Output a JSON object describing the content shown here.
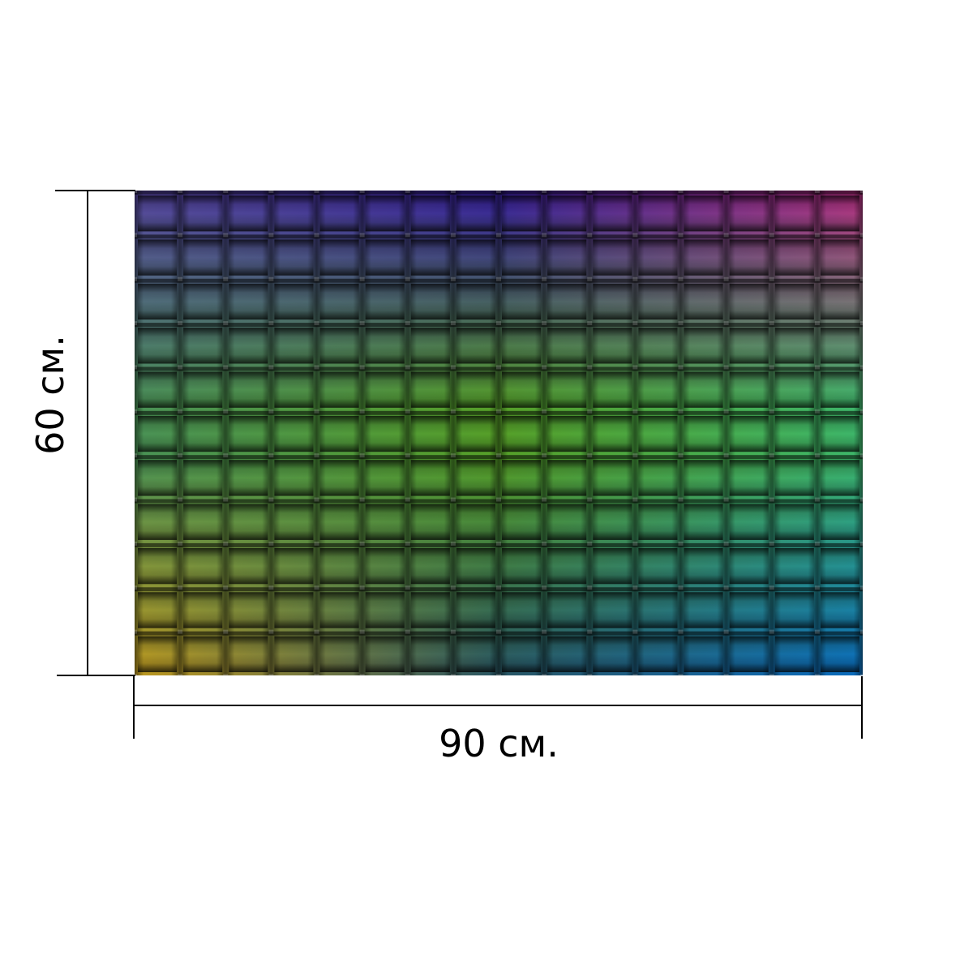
{
  "dimensions": {
    "width_label": "90 см.",
    "height_label": "60 см."
  },
  "product": {
    "pattern": "woven-basket-weave",
    "grid_columns": 16,
    "grid_rows": 11,
    "gradient_top_left": "#5a3fa8",
    "gradient_top_center": "#3a1fa0",
    "gradient_top_right": "#c0308a",
    "gradient_middle": "#5aa83a",
    "gradient_bottom_left": "#c8a020",
    "gradient_bottom_right": "#1070c8"
  }
}
